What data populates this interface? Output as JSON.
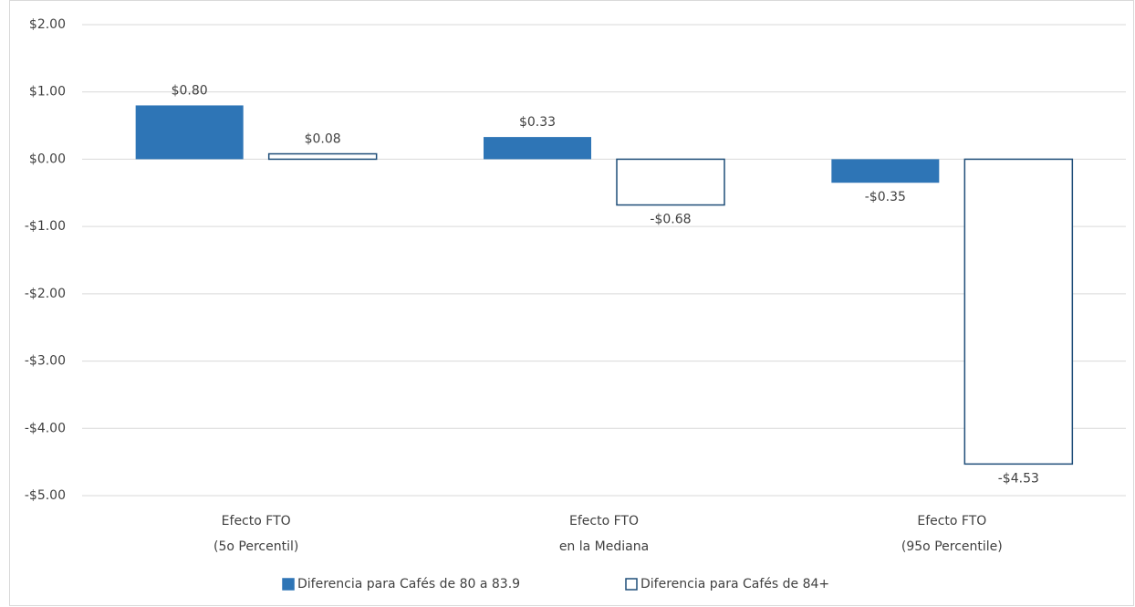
{
  "chart_data": {
    "type": "bar",
    "categories": [
      [
        "Efecto FTO",
        "(5o Percentil)"
      ],
      [
        "Efecto FTO",
        "en la Mediana"
      ],
      [
        "Efecto FTO",
        "(95o Percentile)"
      ]
    ],
    "series": [
      {
        "name": "Diferencia para Cafés de 80 a 83.9",
        "color": "#2e75b6",
        "filled": true,
        "values": [
          0.8,
          0.33,
          -0.35
        ],
        "value_labels": [
          "$0.80",
          "$0.33",
          "-$0.35"
        ]
      },
      {
        "name": "Diferencia para Cafés de 84+",
        "color": "#1f4e79",
        "filled": false,
        "values": [
          0.08,
          -0.68,
          -4.53
        ],
        "value_labels": [
          "$0.08",
          "-$0.68",
          "-$4.53"
        ]
      }
    ],
    "ylim": [
      -5,
      2
    ],
    "yticks": [
      {
        "value": 2,
        "label": "$2.00"
      },
      {
        "value": 1,
        "label": "$1.00"
      },
      {
        "value": 0,
        "label": "$0.00"
      },
      {
        "value": -1,
        "label": "-$1.00"
      },
      {
        "value": -2,
        "label": "-$2.00"
      },
      {
        "value": -3,
        "label": "-$3.00"
      },
      {
        "value": -4,
        "label": "-$4.00"
      },
      {
        "value": -5,
        "label": "-$5.00"
      }
    ],
    "grid": true,
    "legend": "bottom"
  }
}
